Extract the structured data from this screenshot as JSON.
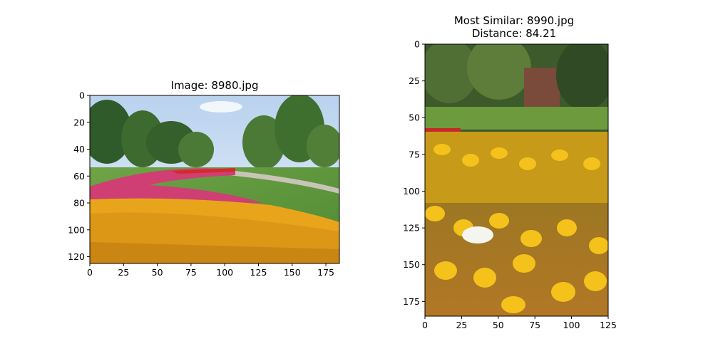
{
  "chart_data": [
    {
      "type": "image",
      "title": "Image: 8980.jpg",
      "xlim": [
        0,
        185
      ],
      "ylim": [
        125,
        0
      ],
      "xticks": [
        0,
        25,
        50,
        75,
        100,
        125,
        150,
        175
      ],
      "yticks": [
        0,
        20,
        40,
        60,
        80,
        100,
        120
      ],
      "image_content": "tulip-garden-park"
    },
    {
      "type": "image",
      "title_lines": [
        "Most Similar: 8990.jpg",
        "Distance: 84.21"
      ],
      "xlim": [
        0,
        125
      ],
      "ylim": [
        185,
        0
      ],
      "xticks": [
        0,
        25,
        50,
        75,
        100,
        125
      ],
      "yticks": [
        0,
        25,
        50,
        75,
        100,
        125,
        150,
        175
      ],
      "image_content": "yellow-tulips-close"
    }
  ]
}
